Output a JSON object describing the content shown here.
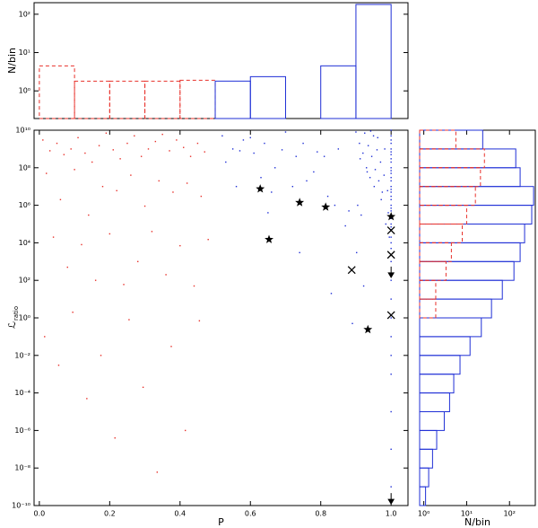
{
  "chart_data": [
    {
      "type": "histogram",
      "ylabel": "N/bin",
      "xlim": [
        -0.015,
        1.048
      ],
      "ylim": [
        0.19,
        200
      ],
      "yscale": "log",
      "yticks": [
        {
          "value": 1,
          "label": "10⁰"
        },
        {
          "value": 10,
          "label": "10¹"
        },
        {
          "value": 100,
          "label": "10²"
        }
      ],
      "bins": [
        0,
        0.1,
        0.2,
        0.3,
        0.4,
        0.5,
        0.6,
        0.7,
        0.8,
        0.9,
        1.0
      ],
      "series": [
        {
          "color": "#e8302a",
          "dashed": true,
          "values": [
            4.5,
            1.8,
            1.8,
            1.8,
            1.9,
            0,
            0,
            0,
            0,
            0
          ]
        },
        {
          "color": "#1f2fd6",
          "dashed": false,
          "values": [
            0,
            0,
            0,
            0,
            0,
            1.8,
            2.35,
            0,
            4.5,
            180
          ]
        }
      ]
    },
    {
      "type": "scatter",
      "xlabel": "P",
      "ylabel": "ℒ",
      "ylabel_sub": "ratio",
      "xlim": [
        -0.015,
        1.048
      ],
      "ylim": [
        1e-10,
        10000000000.0
      ],
      "yscale": "log",
      "xticks": [
        {
          "value": 0,
          "label": "0.0"
        },
        {
          "value": 0.2,
          "label": "0.2"
        },
        {
          "value": 0.4,
          "label": "0.4"
        },
        {
          "value": 0.6,
          "label": "0.6"
        },
        {
          "value": 0.8,
          "label": "0.8"
        },
        {
          "value": 1,
          "label": "1.0"
        }
      ],
      "yticks": [
        {
          "value": 10000000000.0,
          "label": "10¹⁰"
        },
        {
          "value": 100000000.0,
          "label": "10⁸"
        },
        {
          "value": 1000000.0,
          "label": "10⁶"
        },
        {
          "value": 10000.0,
          "label": "10⁴"
        },
        {
          "value": 100.0,
          "label": "10²"
        },
        {
          "value": 1,
          "label": "10⁰"
        },
        {
          "value": 0.01,
          "label": "10⁻²"
        },
        {
          "value": 0.0001,
          "label": "10⁻⁴"
        },
        {
          "value": 1e-06,
          "label": "10⁻⁶"
        },
        {
          "value": 1e-08,
          "label": "10⁻⁸"
        },
        {
          "value": 1e-10,
          "label": "10⁻¹⁰"
        }
      ],
      "series": [
        {
          "color": "#e8302a",
          "marker": "dot",
          "x": [
            0.01,
            0.03,
            0.05,
            0.07,
            0.09,
            0.11,
            0.13,
            0.15,
            0.17,
            0.19,
            0.21,
            0.23,
            0.25,
            0.27,
            0.29,
            0.31,
            0.33,
            0.35,
            0.37,
            0.39,
            0.41,
            0.43,
            0.45,
            0.47,
            0.02,
            0.06,
            0.1,
            0.14,
            0.18,
            0.22,
            0.26,
            0.3,
            0.34,
            0.38,
            0.42,
            0.46,
            0.04,
            0.08,
            0.12,
            0.16,
            0.2,
            0.24,
            0.28,
            0.32,
            0.36,
            0.4,
            0.44,
            0.48,
            0.015,
            0.055,
            0.095,
            0.135,
            0.175,
            0.215,
            0.255,
            0.295,
            0.335,
            0.375,
            0.415,
            0.455
          ],
          "y": [
            3000000000.0,
            800000000.0,
            2000000000.0,
            500000000.0,
            1000000000.0,
            4000000000.0,
            600000000.0,
            200000000.0,
            1500000000.0,
            7000000000.0,
            900000000.0,
            300000000.0,
            2000000000.0,
            5000000000.0,
            400000000.0,
            1000000000.0,
            2500000000.0,
            6000000000.0,
            800000000.0,
            3000000000.0,
            1200000000.0,
            400000000.0,
            2000000000.0,
            700000000.0,
            50000000.0,
            2000000.0,
            80000000.0,
            300000.0,
            10000000.0,
            6000000.0,
            40000000.0,
            900000.0,
            20000000.0,
            5000000.0,
            15000000.0,
            3000000.0,
            20000.0,
            500.0,
            8000.0,
            100.0,
            30000.0,
            60.0,
            1000.0,
            40000.0,
            200.0,
            7000.0,
            50.0,
            15000.0,
            0.1,
            0.003,
            2.0,
            5e-05,
            0.01,
            4e-07,
            0.8,
            0.0002,
            6e-09,
            0.03,
            1e-06,
            0.7
          ]
        },
        {
          "color": "#1f2fd6",
          "marker": "dot",
          "x": [
            1,
            1,
            1,
            1,
            1,
            1,
            1,
            1,
            1,
            1,
            1,
            1,
            1,
            1,
            1,
            1,
            1,
            1,
            1,
            1,
            1,
            1,
            1,
            1,
            1,
            1,
            1,
            1,
            1,
            1,
            1,
            1,
            1,
            1,
            1,
            1,
            1,
            1,
            1,
            1,
            0.9,
            0.91,
            0.92,
            0.93,
            0.94,
            0.95,
            0.96,
            0.97,
            0.98,
            0.99,
            0.905,
            0.915,
            0.925,
            0.935,
            0.945,
            0.955,
            0.965,
            0.975,
            0.985,
            0.995,
            0.902,
            0.922,
            0.942,
            0.962,
            0.982,
            0.912,
            0.932,
            0.952,
            0.972,
            0.992,
            0.52,
            0.55,
            0.58,
            0.61,
            0.64,
            0.67,
            0.7,
            0.73,
            0.76,
            0.79,
            0.82,
            0.85,
            0.88,
            0.53,
            0.57,
            0.6,
            0.63,
            0.66,
            0.69,
            0.72,
            0.75,
            0.78,
            0.81,
            0.84,
            0.87,
            0.56,
            0.65,
            0.74,
            0.83,
            0.89
          ],
          "y": [
            10000000000.0,
            5000000000.0,
            2000000000.0,
            1000000000.0,
            500000000.0,
            200000000.0,
            100000000.0,
            50000000.0,
            20000000.0,
            10000000.0,
            5000000.0,
            2000000.0,
            1000000.0,
            500000.0,
            200000.0,
            100000.0,
            50000.0,
            20000.0,
            10000.0,
            5000.0,
            3000000000.0,
            700000000.0,
            300000000.0,
            70000000.0,
            30000000.0,
            7000000.0,
            3000000.0,
            700000.0,
            300000.0,
            70000.0,
            1000.0,
            100.0,
            10.0,
            1.0,
            0.1,
            0.01,
            0.001,
            1e-05,
            1e-07,
            1e-09,
            8000000000.0,
            2000000000.0,
            600000000.0,
            100000000.0,
            30000000.0,
            5000000000.0,
            900000000.0,
            200000000.0,
            40000000.0,
            6000000.0,
            1000000.0,
            300000.0,
            7000000000.0,
            1500000000.0,
            400000000.0,
            80000000.0,
            20000000.0,
            5000000.0,
            100000.0,
            20000.0,
            3000.0,
            50.0,
            9000000000.0,
            4000000000.0,
            1000000000.0,
            300000000.0,
            60000000.0,
            10000000.0,
            2000000.0,
            400000.0,
            5000000000.0,
            1000000000.0,
            3000000000.0,
            600000000.0,
            2000000000.0,
            100000000.0,
            8000000000.0,
            400000000.0,
            20000000.0,
            700000000.0,
            3000000.0,
            1000000000.0,
            500000.0,
            200000000.0,
            800000000.0,
            4000000000.0,
            30000000.0,
            5000000.0,
            900000000.0,
            10000000.0,
            2000000000.0,
            60000000.0,
            400000000.0,
            1000000.0,
            80000.0,
            10000000.0,
            400000.0,
            3000.0,
            20.0,
            0.5
          ]
        },
        {
          "color": "#000000",
          "marker": "star",
          "x": [
            0.628,
            0.74,
            0.814,
            0.653,
            0.934,
            1.0
          ],
          "y": [
            7500000.0,
            1400000.0,
            800000.0,
            15000.0,
            0.24,
            250000.0
          ]
        },
        {
          "color": "#000000",
          "marker": "x",
          "x": [
            0.888,
            1.0,
            1.0,
            1.0
          ],
          "y": [
            355,
            2300.0,
            46000.0,
            1.4
          ]
        },
        {
          "color": "#000000",
          "marker": "v",
          "x": [
            1.0,
            1.0
          ],
          "y": [
            200,
            1.7e-10
          ]
        }
      ]
    },
    {
      "type": "histogram",
      "orientation": "horizontal",
      "xlabel": "N/bin",
      "xlim": [
        0.8,
        400
      ],
      "xscale": "log",
      "ylim": [
        1e-10,
        10000000000.0
      ],
      "yscale": "log",
      "xticks": [
        {
          "value": 1,
          "label": "10⁰"
        },
        {
          "value": 10,
          "label": "10¹"
        },
        {
          "value": 100,
          "label": "10²"
        }
      ],
      "bins": [
        1e-10,
        1e-09,
        1e-08,
        1e-07,
        1e-06,
        1e-05,
        0.0001,
        0.001,
        0.01,
        0.1,
        1,
        10.0,
        100.0,
        1000.0,
        10000.0,
        100000.0,
        1000000.0,
        10000000.0,
        100000000.0,
        1000000000.0,
        10000000000.0
      ],
      "series": [
        {
          "color": "#1f2fd6",
          "dashed": false,
          "values": [
            1.1,
            1.3,
            1.6,
            2,
            3,
            4,
            5,
            7,
            12,
            22,
            38,
            68,
            127,
            177,
            225,
            330,
            365,
            177,
            140,
            23.7
          ]
        },
        {
          "color": "#e8302a",
          "dashed": true,
          "values": [
            0,
            0,
            0,
            0,
            0,
            0,
            0,
            0,
            0,
            0,
            1.9,
            1.9,
            3.3,
            4.4,
            7.9,
            10,
            16,
            21,
            26,
            5.6
          ]
        }
      ]
    }
  ]
}
